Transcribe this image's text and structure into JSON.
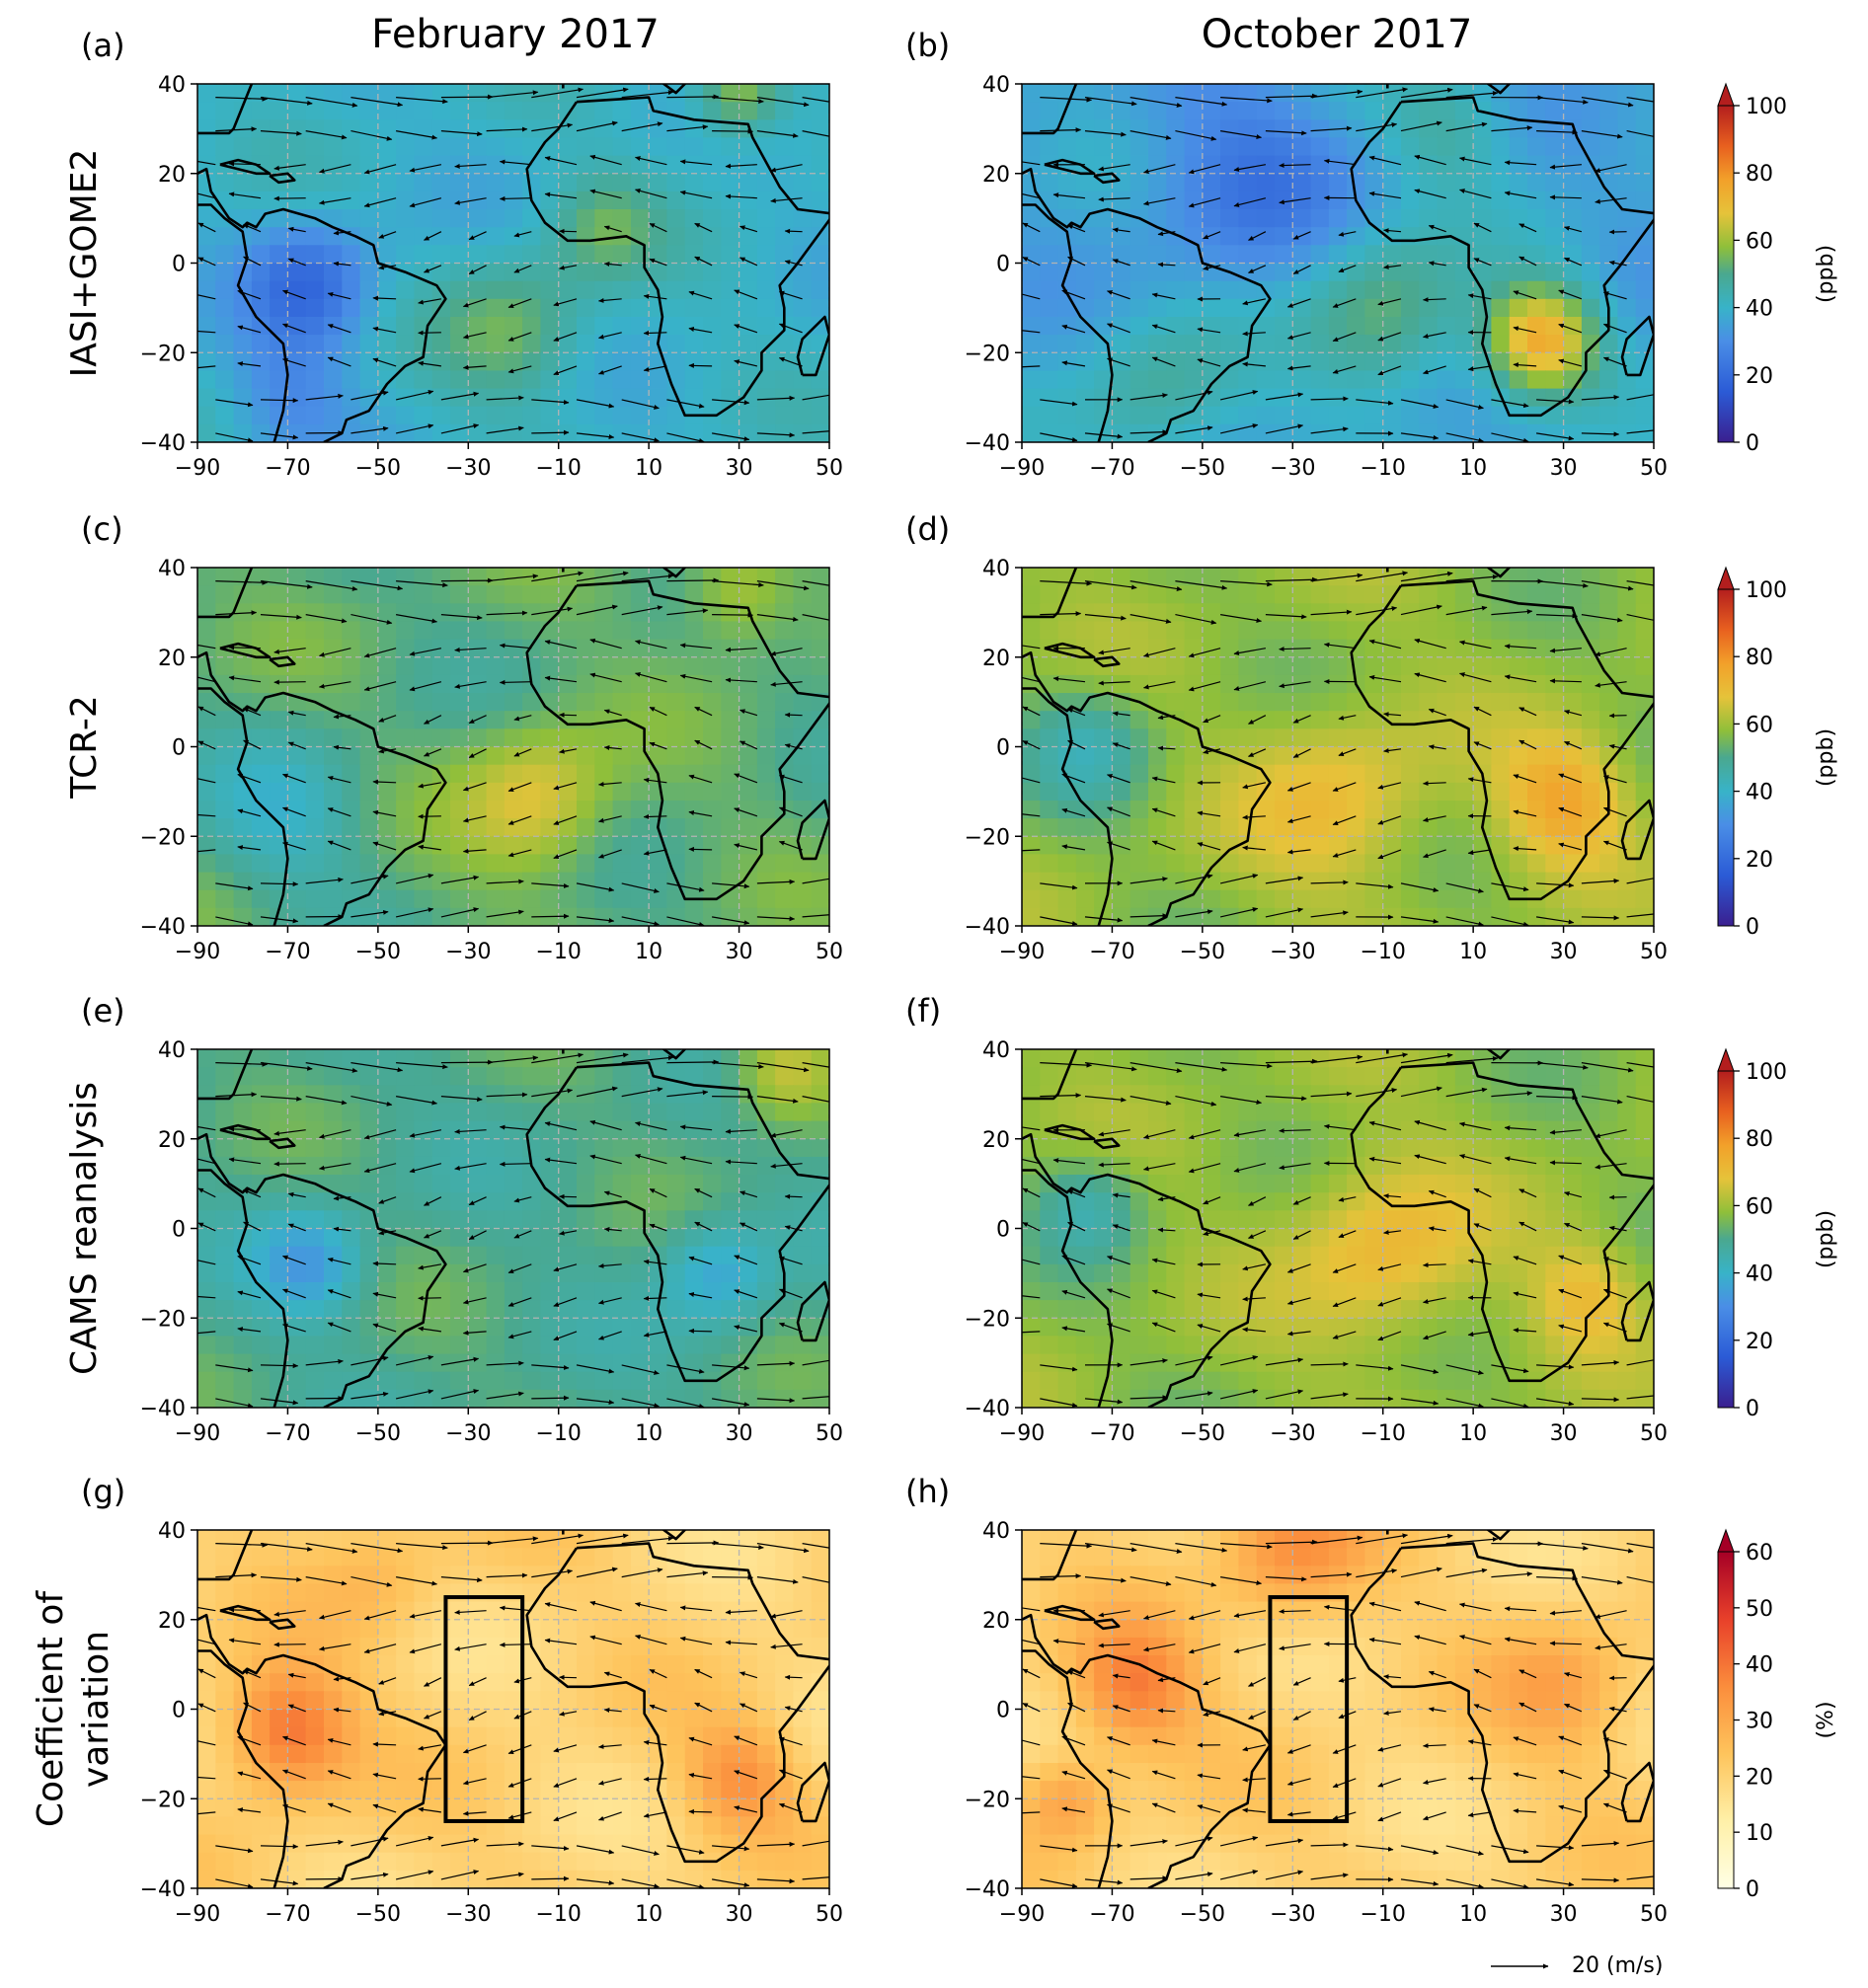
{
  "figure": {
    "column_titles": [
      "February 2017",
      "October 2017"
    ],
    "row_labels": [
      [
        "IASI+GOME2"
      ],
      [
        "TCR-2"
      ],
      [
        "CAMS reanalysis"
      ],
      [
        "Coefficient of",
        "variation"
      ]
    ],
    "panel_labels": [
      "(a)",
      "(b)",
      "(c)",
      "(d)",
      "(e)",
      "(f)",
      "(g)",
      "(h)"
    ],
    "wind_key_label": "20 (m/s)"
  },
  "chart_data": {
    "type": "heatmap",
    "x_ticks": [
      -90,
      -70,
      -50,
      -30,
      -10,
      10,
      30,
      50
    ],
    "y_ticks": [
      -40,
      -20,
      0,
      20,
      40
    ],
    "xlim": [
      -90,
      50
    ],
    "ylim": [
      -40,
      40
    ],
    "grid": true,
    "colorbars": [
      {
        "row": 0,
        "label": "(ppb)",
        "ticks": [
          0,
          20,
          40,
          60,
          80,
          100
        ],
        "range": [
          0,
          100
        ],
        "extend": "max",
        "colormap": "spectral"
      },
      {
        "row": 1,
        "label": "(ppb)",
        "ticks": [
          0,
          20,
          40,
          60,
          80,
          100
        ],
        "range": [
          0,
          100
        ],
        "extend": "max",
        "colormap": "spectral"
      },
      {
        "row": 2,
        "label": "(ppb)",
        "ticks": [
          0,
          20,
          40,
          60,
          80,
          100
        ],
        "range": [
          0,
          100
        ],
        "extend": "max",
        "colormap": "spectral"
      },
      {
        "row": 3,
        "label": "(%)",
        "ticks": [
          0,
          10,
          20,
          30,
          40,
          50,
          60
        ],
        "range": [
          0,
          60
        ],
        "extend": "max",
        "colormap": "yellow-orange-red"
      }
    ],
    "boxes": [
      {
        "panels": [
          "(g)",
          "(h)"
        ],
        "lon": [
          -35,
          -18
        ],
        "lat": [
          -25,
          25
        ]
      }
    ],
    "approximate_fields": [
      {
        "panel": "(a)",
        "base": 40,
        "hotspots": [
          {
            "lon": -65,
            "lat": -5,
            "r": 14,
            "v": -20
          },
          {
            "lon": -20,
            "lat": -15,
            "r": 16,
            "v": 14
          },
          {
            "lon": 0,
            "lat": 8,
            "r": 12,
            "v": 12
          },
          {
            "lon": 30,
            "lat": 38,
            "r": 10,
            "v": 20
          },
          {
            "lon": -70,
            "lat": -30,
            "r": 14,
            "v": -10
          }
        ]
      },
      {
        "panel": "(b)",
        "base": 36,
        "hotspots": [
          {
            "lon": 25,
            "lat": -17,
            "r": 12,
            "v": 38
          },
          {
            "lon": -10,
            "lat": -12,
            "r": 18,
            "v": 18
          },
          {
            "lon": -40,
            "lat": 18,
            "r": 22,
            "v": -12
          },
          {
            "lon": 5,
            "lat": 30,
            "r": 14,
            "v": 10
          },
          {
            "lon": -60,
            "lat": -30,
            "r": 18,
            "v": 12
          }
        ]
      },
      {
        "panel": "(c)",
        "base": 52,
        "hotspots": [
          {
            "lon": -15,
            "lat": -12,
            "r": 16,
            "v": 16
          },
          {
            "lon": -70,
            "lat": -15,
            "r": 18,
            "v": -10
          },
          {
            "lon": 30,
            "lat": 35,
            "r": 12,
            "v": 12
          }
        ]
      },
      {
        "panel": "(d)",
        "base": 58,
        "hotspots": [
          {
            "lon": 30,
            "lat": -12,
            "r": 14,
            "v": 18
          },
          {
            "lon": -20,
            "lat": -12,
            "r": 20,
            "v": 12
          },
          {
            "lon": -75,
            "lat": 0,
            "r": 14,
            "v": -12
          }
        ]
      },
      {
        "panel": "(e)",
        "base": 50,
        "hotspots": [
          {
            "lon": -65,
            "lat": -8,
            "r": 12,
            "v": -16
          },
          {
            "lon": 25,
            "lat": -10,
            "r": 12,
            "v": -14
          },
          {
            "lon": 40,
            "lat": 35,
            "r": 12,
            "v": 16
          }
        ]
      },
      {
        "panel": "(f)",
        "base": 58,
        "hotspots": [
          {
            "lon": -10,
            "lat": -5,
            "r": 20,
            "v": 14
          },
          {
            "lon": 35,
            "lat": -15,
            "r": 12,
            "v": 12
          },
          {
            "lon": -75,
            "lat": 5,
            "r": 12,
            "v": -12
          }
        ]
      },
      {
        "panel": "(g)",
        "base": 20,
        "hotspots": [
          {
            "lon": -70,
            "lat": -5,
            "r": 14,
            "v": 22
          },
          {
            "lon": 30,
            "lat": -15,
            "r": 12,
            "v": 14
          },
          {
            "lon": -50,
            "lat": 30,
            "r": 14,
            "v": 6
          }
        ]
      },
      {
        "panel": "(h)",
        "base": 20,
        "hotspots": [
          {
            "lon": -65,
            "lat": 5,
            "r": 14,
            "v": 18
          },
          {
            "lon": -30,
            "lat": 35,
            "r": 16,
            "v": 14
          },
          {
            "lon": 30,
            "lat": 5,
            "r": 16,
            "v": 10
          },
          {
            "lon": -80,
            "lat": -20,
            "r": 10,
            "v": 12
          }
        ]
      }
    ]
  }
}
